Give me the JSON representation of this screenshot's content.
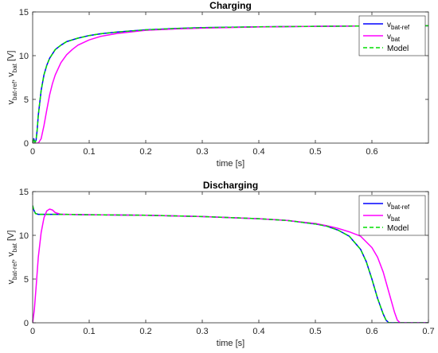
{
  "chart_data": [
    {
      "type": "line",
      "title": "Charging",
      "xlabel": "time [s]",
      "ylabel_parts": [
        {
          "t": "v",
          "sub": false
        },
        {
          "t": "bat-ref",
          "sub": true
        },
        {
          "t": ", v",
          "sub": false
        },
        {
          "t": "bat",
          "sub": true
        },
        {
          "t": " [V]",
          "sub": false
        }
      ],
      "xlim": [
        0,
        0.7
      ],
      "ylim": [
        0,
        15
      ],
      "xticks": [
        0,
        0.1,
        0.2,
        0.3,
        0.4,
        0.5,
        0.6
      ],
      "xtick_labels": [
        "0",
        "0.1",
        "0.2",
        "0.3",
        "0.4",
        "0.5",
        "0.6"
      ],
      "yticks": [
        0,
        5,
        10,
        15
      ],
      "ytick_labels": [
        "0",
        "5",
        "10",
        "15"
      ],
      "legend_position": "top-right",
      "series": [
        {
          "name_base": "v",
          "name_sub": "bat-ref",
          "color": "#0000ff",
          "dash": "",
          "x": [
            0,
            0.002,
            0.004,
            0.006,
            0.008,
            0.01,
            0.015,
            0.02,
            0.025,
            0.03,
            0.04,
            0.05,
            0.06,
            0.08,
            0.1,
            0.12,
            0.15,
            0.2,
            0.25,
            0.3,
            0.4,
            0.5,
            0.6,
            0.7
          ],
          "y": [
            0,
            0.5,
            0.1,
            0.3,
            1.5,
            3.2,
            6.0,
            7.8,
            8.9,
            9.7,
            10.7,
            11.2,
            11.6,
            12.0,
            12.3,
            12.5,
            12.7,
            12.95,
            13.1,
            13.2,
            13.3,
            13.35,
            13.4,
            13.42
          ]
        },
        {
          "name_base": "v",
          "name_sub": "bat",
          "color": "#ff00ff",
          "dash": "",
          "x": [
            0,
            0.005,
            0.01,
            0.015,
            0.02,
            0.025,
            0.03,
            0.035,
            0.04,
            0.05,
            0.06,
            0.07,
            0.08,
            0.1,
            0.12,
            0.15,
            0.2,
            0.25,
            0.3,
            0.4,
            0.5,
            0.6,
            0.7
          ],
          "y": [
            0,
            0,
            0,
            0.5,
            2.0,
            3.8,
            5.5,
            6.8,
            7.8,
            9.2,
            10.1,
            10.7,
            11.2,
            11.8,
            12.2,
            12.55,
            12.9,
            13.05,
            13.15,
            13.28,
            13.35,
            13.4,
            13.42
          ]
        },
        {
          "name_base": "Model",
          "name_sub": "",
          "color": "#00dd00",
          "dash": "5,3",
          "x": [
            0,
            0.002,
            0.004,
            0.006,
            0.008,
            0.01,
            0.015,
            0.02,
            0.025,
            0.03,
            0.04,
            0.05,
            0.06,
            0.08,
            0.1,
            0.12,
            0.15,
            0.2,
            0.25,
            0.3,
            0.4,
            0.5,
            0.6,
            0.7
          ],
          "y": [
            0,
            0.5,
            0.1,
            0.3,
            1.5,
            3.2,
            6.0,
            7.8,
            8.9,
            9.7,
            10.7,
            11.2,
            11.6,
            12.0,
            12.3,
            12.5,
            12.7,
            12.95,
            13.1,
            13.2,
            13.3,
            13.35,
            13.4,
            13.42
          ]
        }
      ]
    },
    {
      "type": "line",
      "title": "Discharging",
      "xlabel": "time [s]",
      "ylabel_parts": [
        {
          "t": "v",
          "sub": false
        },
        {
          "t": "bat-ref",
          "sub": true
        },
        {
          "t": ", v",
          "sub": false
        },
        {
          "t": "bat",
          "sub": true
        },
        {
          "t": " [V]",
          "sub": false
        }
      ],
      "xlim": [
        0,
        0.7
      ],
      "ylim": [
        0,
        15
      ],
      "xticks": [
        0,
        0.1,
        0.2,
        0.3,
        0.4,
        0.5,
        0.6,
        0.7
      ],
      "xtick_labels": [
        "0",
        "0.1",
        "0.2",
        "0.3",
        "0.4",
        "0.5",
        "0.6",
        "0.7"
      ],
      "yticks": [
        0,
        5,
        10,
        15
      ],
      "ytick_labels": [
        "0",
        "5",
        "10",
        "15"
      ],
      "legend_position": "top-right",
      "series": [
        {
          "name_base": "v",
          "name_sub": "bat-ref",
          "color": "#0000ff",
          "dash": "",
          "x": [
            0,
            0.002,
            0.005,
            0.01,
            0.05,
            0.1,
            0.2,
            0.3,
            0.4,
            0.45,
            0.5,
            0.52,
            0.54,
            0.56,
            0.58,
            0.59,
            0.6,
            0.61,
            0.62,
            0.625,
            0.63,
            0.635,
            0.7
          ],
          "y": [
            13.4,
            12.9,
            12.5,
            12.4,
            12.4,
            12.35,
            12.3,
            12.15,
            11.9,
            11.7,
            11.3,
            11.05,
            10.6,
            9.9,
            8.4,
            7.0,
            5.0,
            2.8,
            1.0,
            0.3,
            0,
            0,
            0
          ]
        },
        {
          "name_base": "v",
          "name_sub": "bat",
          "color": "#ff00ff",
          "dash": "",
          "x": [
            0,
            0.003,
            0.006,
            0.01,
            0.015,
            0.02,
            0.025,
            0.03,
            0.035,
            0.04,
            0.05,
            0.06,
            0.1,
            0.2,
            0.3,
            0.4,
            0.45,
            0.5,
            0.52,
            0.54,
            0.56,
            0.58,
            0.6,
            0.61,
            0.62,
            0.63,
            0.64,
            0.645,
            0.65,
            0.7
          ],
          "y": [
            0,
            1.5,
            4.0,
            7.5,
            10.3,
            12.0,
            12.8,
            13.0,
            12.9,
            12.6,
            12.4,
            12.4,
            12.35,
            12.3,
            12.15,
            11.9,
            11.7,
            11.35,
            11.1,
            10.8,
            10.4,
            9.9,
            8.6,
            7.5,
            5.8,
            3.5,
            1.2,
            0.3,
            0,
            0
          ]
        },
        {
          "name_base": "Model",
          "name_sub": "",
          "color": "#00dd00",
          "dash": "5,3",
          "x": [
            0,
            0.002,
            0.005,
            0.01,
            0.05,
            0.1,
            0.2,
            0.3,
            0.4,
            0.45,
            0.5,
            0.52,
            0.54,
            0.56,
            0.58,
            0.59,
            0.6,
            0.61,
            0.62,
            0.625,
            0.63,
            0.635,
            0.7
          ],
          "y": [
            13.4,
            12.9,
            12.5,
            12.4,
            12.4,
            12.35,
            12.3,
            12.15,
            11.9,
            11.7,
            11.3,
            11.05,
            10.6,
            9.9,
            8.4,
            7.0,
            5.0,
            2.8,
            1.0,
            0.3,
            0,
            0,
            0
          ]
        }
      ]
    }
  ]
}
